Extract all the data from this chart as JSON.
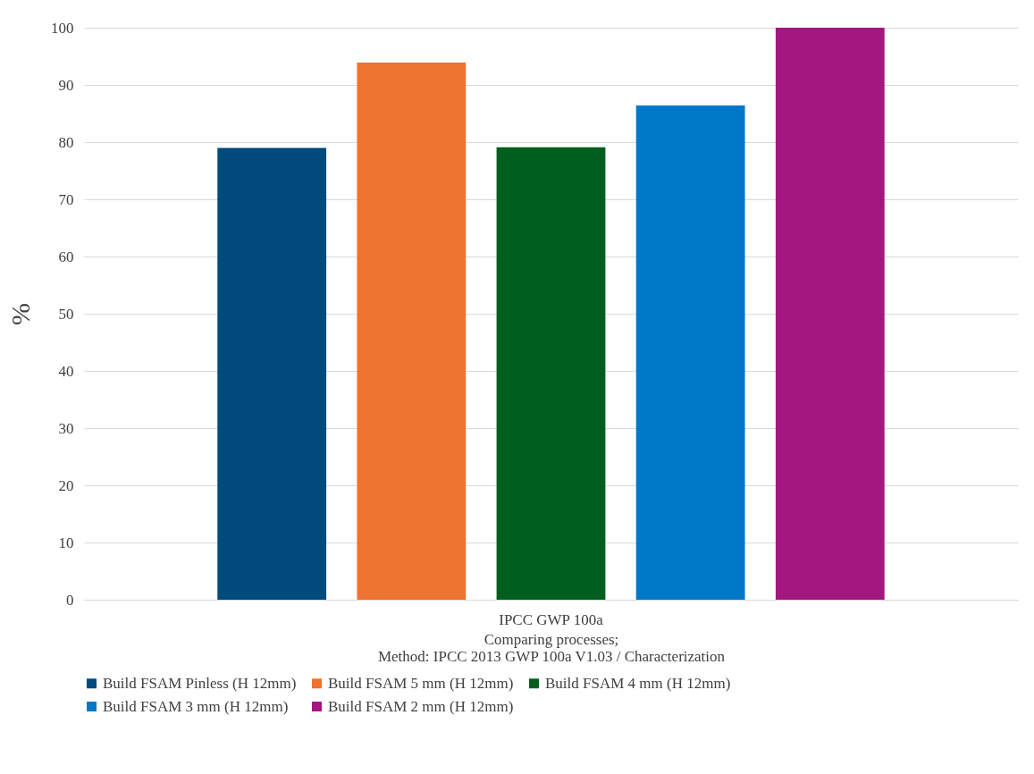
{
  "chart_data": {
    "type": "bar",
    "categories": [
      "IPCC GWP 100a"
    ],
    "xlabel": "Comparing processes;\nMethod: IPCC 2013 GWP 100a V1.03 / Characterization",
    "ylabel": "%",
    "ylim": [
      0,
      100
    ],
    "yticks": [
      0,
      10,
      20,
      30,
      40,
      50,
      60,
      70,
      80,
      90,
      100
    ],
    "grid": "y",
    "legend": "bottom",
    "series": [
      {
        "name": "Build FSAM Pinless (H 12mm)",
        "color": "#004a7c",
        "values": [
          79
        ]
      },
      {
        "name": "Build FSAM 5 mm (H 12mm)",
        "color": "#ed7330",
        "values": [
          93.9
        ]
      },
      {
        "name": "Build FSAM 4 mm (H 12mm)",
        "color": "#005f1f",
        "values": [
          79.1
        ]
      },
      {
        "name": "Build FSAM 3 mm (H 12mm)",
        "color": "#0078c8",
        "values": [
          86.4
        ]
      },
      {
        "name": "Build FSAM 2 mm (H 12mm)",
        "color": "#a3177f",
        "values": [
          100
        ]
      }
    ]
  }
}
